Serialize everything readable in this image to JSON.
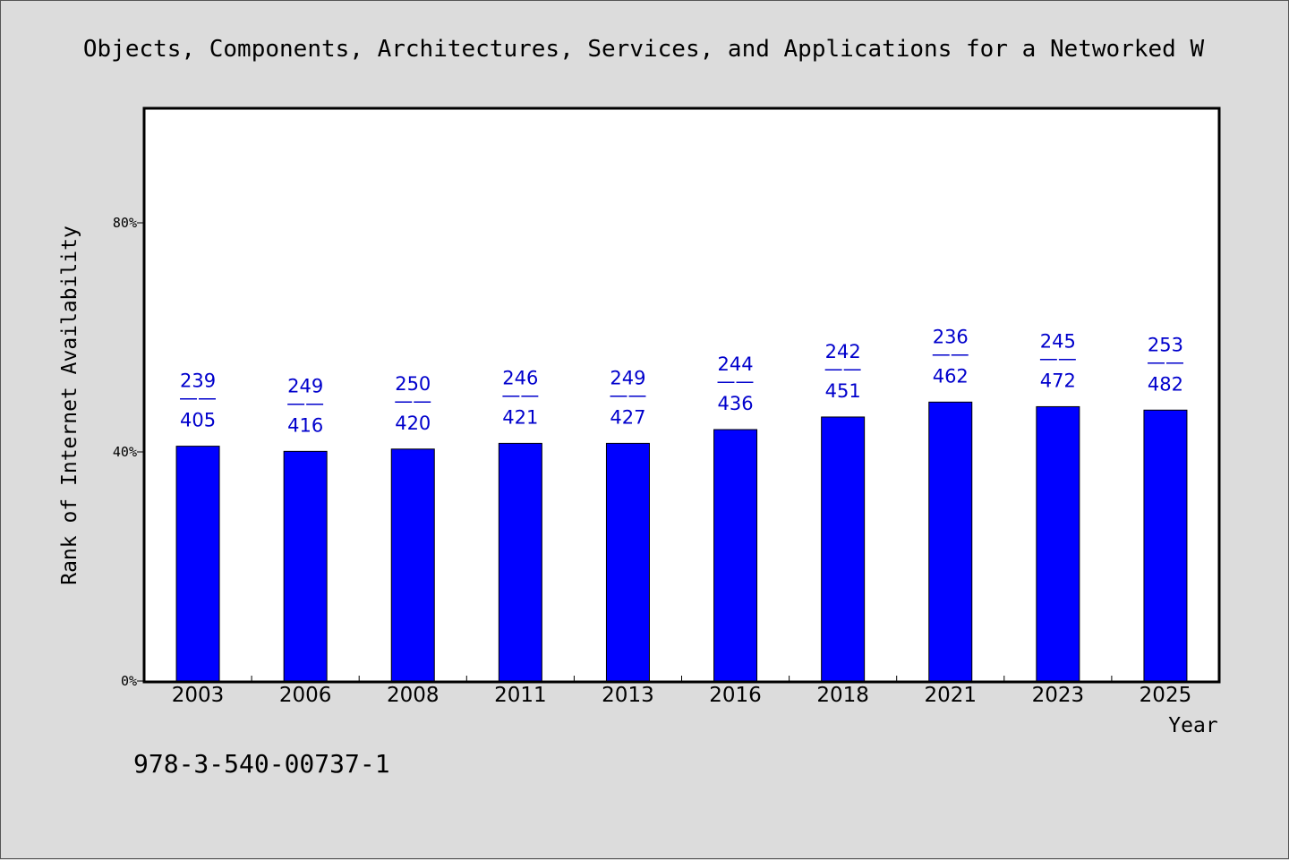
{
  "colors": {
    "background": "#dcdcdc",
    "plot_background": "#ffffff",
    "bar": "#0000ff",
    "label": "#0000cc"
  },
  "footer": {
    "text": "978-3-540-00737-1"
  },
  "chart_data": {
    "type": "bar",
    "title": "Objects, Components, Architectures, Services, and Applications for a Networked W",
    "xlabel": "Year",
    "ylabel": "Rank of Internet Availability",
    "categories": [
      "2003",
      "2006",
      "2008",
      "2011",
      "2013",
      "2016",
      "2018",
      "2021",
      "2023",
      "2025"
    ],
    "values": [
      41.0,
      40.1,
      40.5,
      41.5,
      41.5,
      43.9,
      46.1,
      48.7,
      47.9,
      47.3
    ],
    "ylim": [
      0,
      100
    ],
    "yticks": [
      0,
      40,
      80
    ],
    "ytick_labels": [
      "0%",
      "40%",
      "80%"
    ],
    "data_labels": [
      {
        "top": "239",
        "sep": "——",
        "bottom": "405"
      },
      {
        "top": "249",
        "sep": "——",
        "bottom": "416"
      },
      {
        "top": "250",
        "sep": "——",
        "bottom": "420"
      },
      {
        "top": "246",
        "sep": "——",
        "bottom": "421"
      },
      {
        "top": "249",
        "sep": "——",
        "bottom": "427"
      },
      {
        "top": "244",
        "sep": "——",
        "bottom": "436"
      },
      {
        "top": "242",
        "sep": "——",
        "bottom": "451"
      },
      {
        "top": "236",
        "sep": "——",
        "bottom": "462"
      },
      {
        "top": "245",
        "sep": "——",
        "bottom": "472"
      },
      {
        "top": "253",
        "sep": "——",
        "bottom": "482"
      }
    ],
    "grid": false,
    "legend": "none"
  }
}
